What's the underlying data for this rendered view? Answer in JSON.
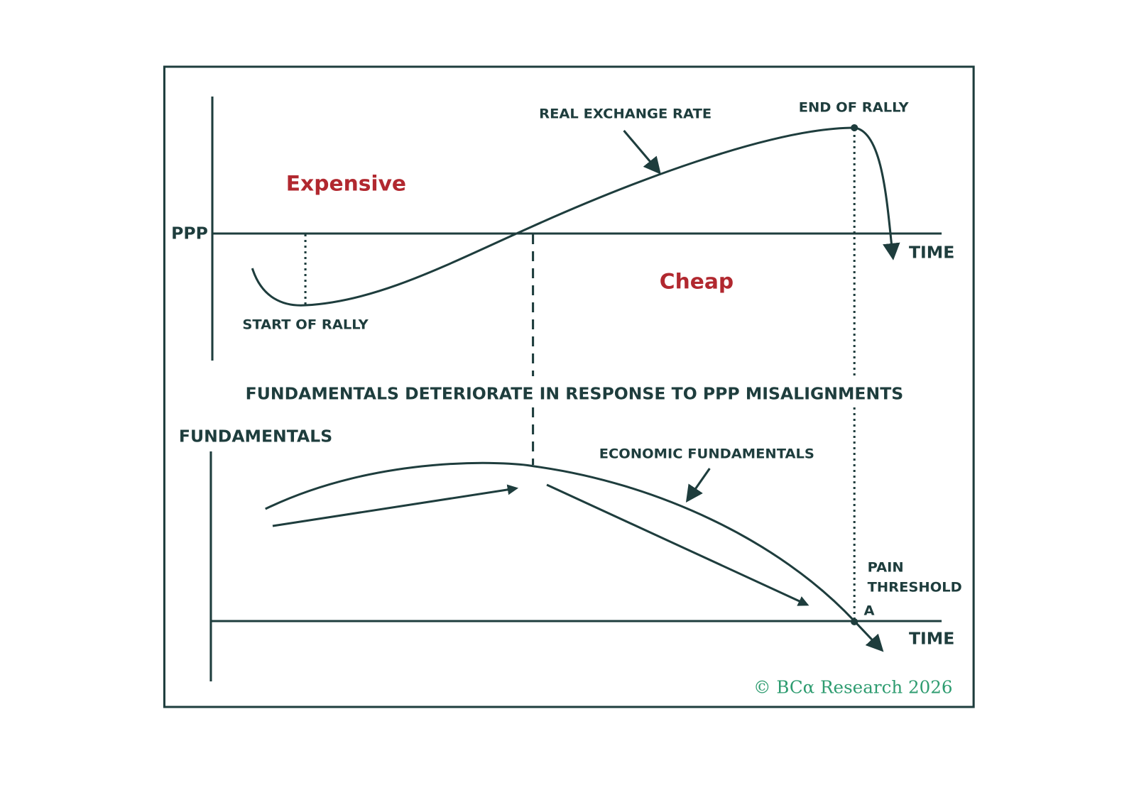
{
  "top_panel": {
    "curve_label": "REAL EXCHANGE RATE",
    "peak_label": "END OF RALLY",
    "upper_zone": "Expensive",
    "lower_zone": "Cheap",
    "axis_label": "PPP",
    "time_label": "TIME",
    "trough_label": "START OF RALLY"
  },
  "caption": "FUNDAMENTALS DETERIORATE IN RESPONSE TO PPP MISALIGNMENTS",
  "bottom_panel": {
    "axis_label": "FUNDAMENTALS",
    "curve_label": "ECONOMIC FUNDAMENTALS",
    "threshold_label": [
      "PAIN",
      "THRESHOLD"
    ],
    "point_label": "A",
    "time_label": "TIME"
  },
  "copyright": "© BCα Research 2026"
}
